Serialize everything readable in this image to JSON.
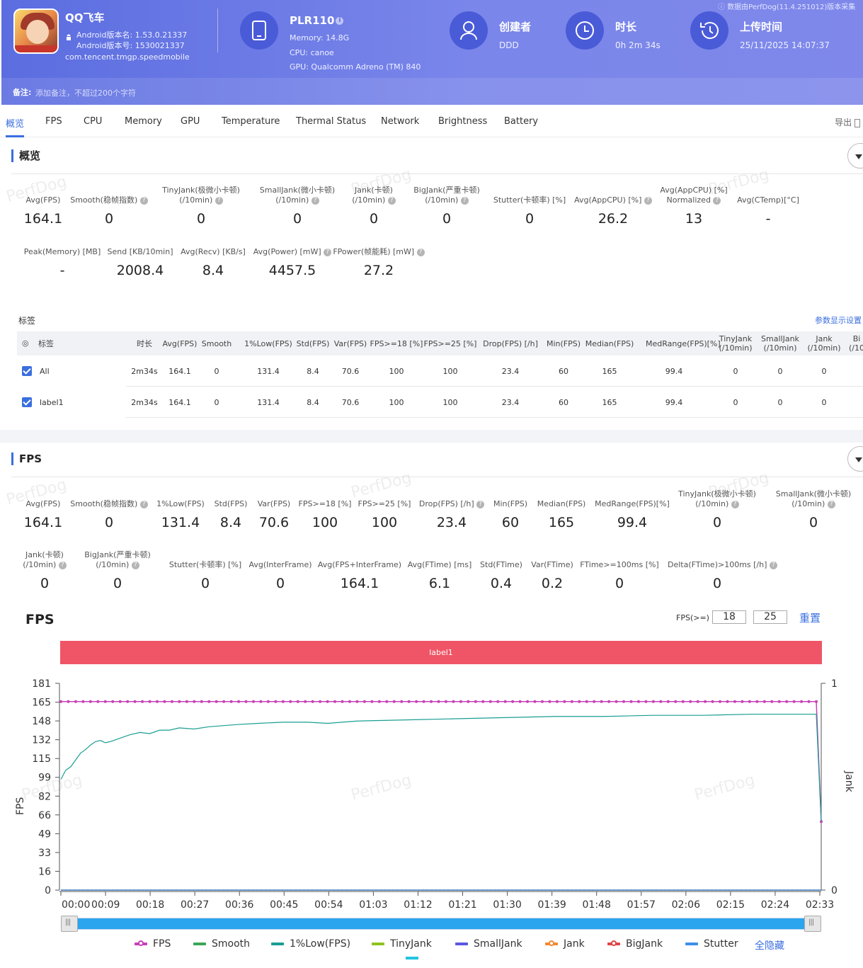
{
  "header": {
    "app_name": "QQ飞车",
    "android_version_name": "Android版本名: 1.53.0.21337",
    "android_version_code": "Android版本号: 1530021337",
    "package": "com.tencent.tmgp.speedmobile",
    "source_note": "数据由PerfDog(11.4.251012)版本采集",
    "device": {
      "name": "PLR110",
      "memory": "Memory: 14.8G",
      "cpu": "CPU: canoe",
      "gpu": "GPU: Qualcomm Adreno (TM) 840"
    },
    "creator": {
      "label": "创建者",
      "value": "DDD"
    },
    "duration": {
      "label": "时长",
      "value": "0h 2m 34s"
    },
    "upload": {
      "label": "上传时间",
      "value": "25/11/2025 14:07:37"
    },
    "note_label": "备注:",
    "note_placeholder": "添加备注，不超过200个字符",
    "colors": {
      "accent": "#5b6de0",
      "icon_circle": "#4a5bd8"
    }
  },
  "tabs": [
    "概览",
    "FPS",
    "CPU",
    "Memory",
    "GPU",
    "Temperature",
    "Thermal Status",
    "Network",
    "Brightness",
    "Battery"
  ],
  "export_label": "导出",
  "watermark": "PerfDog",
  "overview": {
    "title": "概览",
    "metrics_row1": [
      {
        "label": "Avg(FPS)",
        "value": "164.1"
      },
      {
        "label": "Smooth(稳帧指数)",
        "value": "0"
      },
      {
        "label": "TinyJank(极微小卡顿)",
        "label2": "(/10min)",
        "value": "0"
      },
      {
        "label": "SmallJank(微小卡顿)",
        "label2": "(/10min)",
        "value": "0"
      },
      {
        "label": "Jank(卡顿)",
        "label2": "(/10min)",
        "value": "0"
      },
      {
        "label": "BigJank(严重卡顿)",
        "label2": "(/10min)",
        "value": "0"
      },
      {
        "label": "Stutter(卡顿率) [%]",
        "value": "0"
      },
      {
        "label": "Avg(AppCPU) [%]",
        "value": "26.2"
      },
      {
        "label": "Avg(AppCPU) [%]",
        "label2": "Normalized",
        "value": "13"
      },
      {
        "label": "Avg(CTemp)[°C]",
        "value": "-"
      }
    ],
    "metrics_row2": [
      {
        "label": "Peak(Memory) [MB]",
        "value": "-"
      },
      {
        "label": "Send [KB/10min]",
        "value": "2008.4"
      },
      {
        "label": "Avg(Recv) [KB/s]",
        "value": "8.4"
      },
      {
        "label": "Avg(Power) [mW]",
        "value": "4457.5"
      },
      {
        "label": "FPower(帧能耗) [mW]",
        "value": "27.2"
      }
    ],
    "tags_title": "标签",
    "param_settings": "参数显示设置",
    "table": {
      "headers": [
        "标签",
        "时长",
        "Avg(FPS)",
        "Smooth",
        "1%Low(FPS)",
        "Std(FPS)",
        "Var(FPS)",
        "FPS>=18 [%]",
        "FPS>=25 [%]",
        "Drop(FPS) [/h]",
        "Min(FPS)",
        "Median(FPS)",
        "MedRange(FPS)[%]",
        "TinyJank|(/10min)",
        "SmallJank|(/10min)",
        "Jank|(/10min)",
        "Bi|(/10"
      ],
      "rows": [
        [
          "All",
          "2m34s",
          "164.1",
          "0",
          "131.4",
          "8.4",
          "70.6",
          "100",
          "100",
          "23.4",
          "60",
          "165",
          "99.4",
          "0",
          "0",
          "0"
        ],
        [
          "label1",
          "2m34s",
          "164.1",
          "0",
          "131.4",
          "8.4",
          "70.6",
          "100",
          "100",
          "23.4",
          "60",
          "165",
          "99.4",
          "0",
          "0",
          "0"
        ]
      ]
    }
  },
  "fps_section": {
    "title": "FPS",
    "metrics_row1": [
      {
        "label": "Avg(FPS)",
        "value": "164.1"
      },
      {
        "label": "Smooth(稳帧指数)",
        "value": "0"
      },
      {
        "label": "1%Low(FPS)",
        "value": "131.4"
      },
      {
        "label": "Std(FPS)",
        "value": "8.4"
      },
      {
        "label": "Var(FPS)",
        "value": "70.6"
      },
      {
        "label": "FPS>=18 [%]",
        "value": "100"
      },
      {
        "label": "FPS>=25 [%]",
        "value": "100"
      },
      {
        "label": "Drop(FPS) [/h]",
        "value": "23.4"
      },
      {
        "label": "Min(FPS)",
        "value": "60"
      },
      {
        "label": "Median(FPS)",
        "value": "165"
      },
      {
        "label": "MedRange(FPS)[%]",
        "value": "99.4"
      },
      {
        "label": "TinyJank(极微小卡顿)",
        "label2": "(/10min)",
        "value": "0"
      },
      {
        "label": "SmallJank(微小卡顿)",
        "label2": "(/10min)",
        "value": "0"
      }
    ],
    "metrics_row2": [
      {
        "label": "Jank(卡顿)",
        "label2": "(/10min)",
        "value": "0"
      },
      {
        "label": "BigJank(严重卡顿)",
        "label2": "(/10min)",
        "value": "0"
      },
      {
        "label": "Stutter(卡顿率) [%]",
        "value": "0"
      },
      {
        "label": "Avg(InterFrame)",
        "value": "0"
      },
      {
        "label": "Avg(FPS+InterFrame)",
        "value": "164.1"
      },
      {
        "label": "Avg(FTime) [ms]",
        "value": "6.1"
      },
      {
        "label": "Std(FTime)",
        "value": "0.4"
      },
      {
        "label": "Var(FTime)",
        "value": "0.2"
      },
      {
        "label": "FTime>=100ms [%]",
        "value": "0"
      },
      {
        "label": "Delta(FTime)>100ms [/h]",
        "value": "0"
      }
    ],
    "chart_title": "FPS",
    "threshold_label": "FPS(>=)",
    "threshold1": "18",
    "threshold2": "25",
    "reset_label": "重置",
    "band_label": "label1",
    "hide_all": "全隐藏"
  },
  "chart_data": {
    "type": "line",
    "title": "FPS",
    "xlabel": "",
    "ylabel": "FPS",
    "y2label": "Jank",
    "ylim": [
      0,
      181
    ],
    "y2lim": [
      0,
      1
    ],
    "yticks": [
      "0",
      "16",
      "33",
      "49",
      "66",
      "82",
      "99",
      "115",
      "132",
      "148",
      "165",
      "181"
    ],
    "y2ticks": [
      "0",
      "1"
    ],
    "xticks": [
      "00:00",
      "00:09",
      "00:18",
      "00:27",
      "00:36",
      "00:45",
      "00:54",
      "01:03",
      "01:12",
      "01:21",
      "01:30",
      "01:39",
      "01:48",
      "01:57",
      "02:06",
      "02:15",
      "02:24",
      "02:33"
    ],
    "x_range_seconds": [
      0,
      154
    ],
    "series": [
      {
        "name": "FPS",
        "color": "#c640b8",
        "marker": "dot",
        "x": [
          0,
          2,
          150,
          153,
          154
        ],
        "values": [
          165,
          165,
          165,
          165,
          60
        ]
      },
      {
        "name": "Smooth",
        "color": "#3aa757",
        "marker": "line",
        "x": [
          0,
          154
        ],
        "values": [
          0,
          0
        ]
      },
      {
        "name": "1%Low(FPS)",
        "color": "#1a9e93",
        "marker": "line",
        "x": [
          0,
          1,
          2,
          3,
          4,
          5,
          6,
          7,
          8,
          9,
          10,
          12,
          14,
          16,
          18,
          20,
          22,
          24,
          27,
          30,
          33,
          36,
          40,
          45,
          50,
          54,
          60,
          70,
          80,
          90,
          100,
          110,
          120,
          130,
          140,
          150,
          153,
          154
        ],
        "values": [
          97,
          105,
          108,
          114,
          120,
          123,
          127,
          130,
          131,
          129,
          130,
          133,
          136,
          138,
          137,
          140,
          140,
          142,
          141,
          143,
          144,
          145,
          146,
          147,
          147,
          146,
          148,
          149,
          150,
          151,
          152,
          152,
          153,
          153,
          154,
          154,
          154,
          60
        ]
      },
      {
        "name": "TinyJank",
        "color": "#8fc31f",
        "marker": "line",
        "x": [
          0,
          154
        ],
        "values": [
          0,
          0
        ]
      },
      {
        "name": "SmallJank",
        "color": "#5b57e0",
        "marker": "line",
        "x": [
          0,
          154
        ],
        "values": [
          0,
          0
        ]
      },
      {
        "name": "Jank",
        "color": "#f28a32",
        "marker": "dot",
        "x": [
          0,
          154
        ],
        "values": [
          0,
          0
        ]
      },
      {
        "name": "BigJank",
        "color": "#e04545",
        "marker": "dot",
        "x": [
          0,
          154
        ],
        "values": [
          0,
          0
        ]
      },
      {
        "name": "Stutter",
        "color": "#3b8fe8",
        "marker": "line",
        "x": [
          0,
          154
        ],
        "values": [
          0,
          0
        ]
      }
    ],
    "legend_position": "bottom"
  }
}
